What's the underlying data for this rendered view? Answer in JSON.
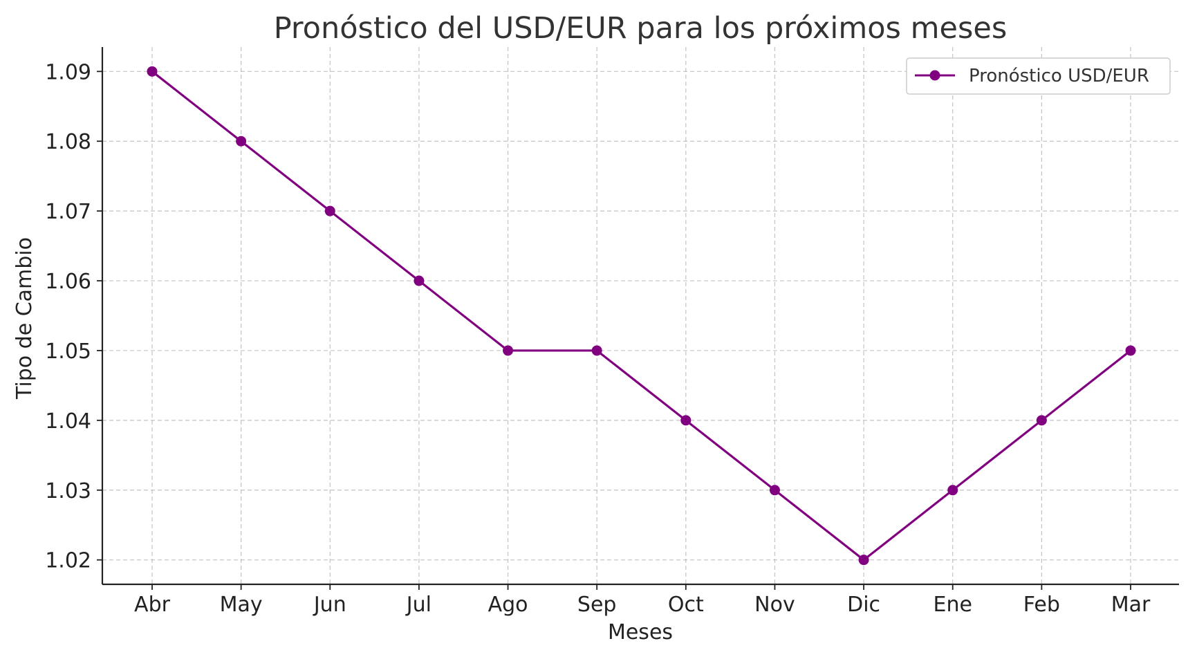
{
  "chart_data": {
    "type": "line",
    "title": "Pronóstico del USD/EUR para los próximos meses",
    "xlabel": "Meses",
    "ylabel": "Tipo de Cambio",
    "categories": [
      "Abr",
      "May",
      "Jun",
      "Jul",
      "Ago",
      "Sep",
      "Oct",
      "Nov",
      "Dic",
      "Ene",
      "Feb",
      "Mar"
    ],
    "series": [
      {
        "name": "Pronóstico USD/EUR",
        "values": [
          1.09,
          1.08,
          1.07,
          1.06,
          1.05,
          1.05,
          1.04,
          1.03,
          1.02,
          1.03,
          1.04,
          1.05
        ],
        "color": "#800080",
        "marker": "circle"
      }
    ],
    "yticks": [
      "1.02",
      "1.03",
      "1.04",
      "1.05",
      "1.06",
      "1.07",
      "1.08",
      "1.09"
    ],
    "ylim": [
      1.0165,
      1.0935
    ],
    "grid": true,
    "legend_position": "top-right"
  }
}
